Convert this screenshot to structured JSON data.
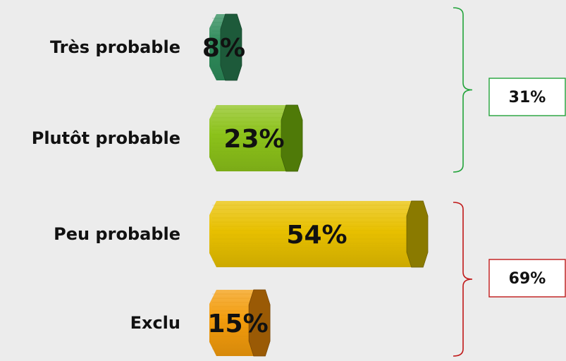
{
  "chart_data": {
    "type": "bar",
    "orientation": "horizontal",
    "categories": [
      "Très probable",
      "Plutôt probable",
      "Peu probable",
      "Exclu"
    ],
    "values": [
      8,
      23,
      54,
      15
    ],
    "value_labels": [
      "8%",
      "23%",
      "54%",
      "15%"
    ],
    "unit": "%",
    "bar_colors": [
      "#2e8b5a",
      "#8cc21a",
      "#e8c000",
      "#f39c0c"
    ],
    "bar_dark_colors": [
      "#1d5a3a",
      "#4f7a08",
      "#8a7a00",
      "#9a5a05"
    ],
    "groups": [
      {
        "label": "31%",
        "members": [
          0,
          1
        ],
        "color": "#22a33a"
      },
      {
        "label": "69%",
        "members": [
          2,
          3
        ],
        "color": "#c01818"
      }
    ]
  }
}
